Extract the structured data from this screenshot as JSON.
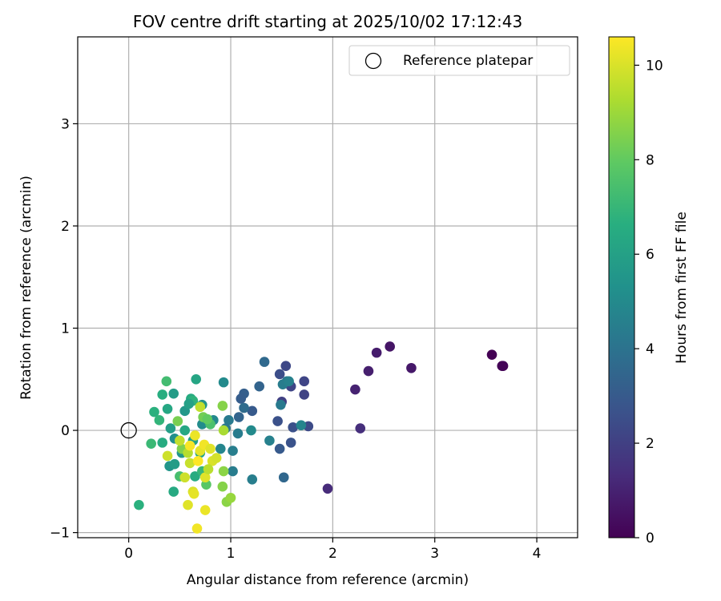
{
  "chart_data": {
    "type": "scatter",
    "title": "FOV centre drift starting at 2025/10/02 17:12:43",
    "xlabel": "Angular distance from reference (arcmin)",
    "ylabel": "Rotation from reference (arcmin)",
    "xlim": [
      -0.5,
      4.4
    ],
    "ylim": [
      -1.05,
      3.85
    ],
    "xticks": [
      0,
      1,
      2,
      3,
      4
    ],
    "yticks": [
      -1,
      0,
      1,
      2,
      3
    ],
    "grid": true,
    "legend": {
      "position": "top-right",
      "entries": [
        "Reference platepar"
      ]
    },
    "reference_point": {
      "x": 0,
      "y": 0
    },
    "colorbar": {
      "label": "Hours from first FF file",
      "min": 0,
      "max": 10.6,
      "ticks": [
        0,
        2,
        4,
        6,
        8,
        10
      ],
      "colormap": "viridis"
    },
    "points": [
      [
        3.56,
        0.74,
        0.0
      ],
      [
        3.66,
        0.63,
        0.05
      ],
      [
        3.67,
        0.63,
        0.1
      ],
      [
        2.56,
        0.82,
        0.6
      ],
      [
        2.43,
        0.76,
        0.8
      ],
      [
        2.35,
        0.58,
        0.9
      ],
      [
        2.22,
        0.4,
        1.0
      ],
      [
        2.77,
        0.61,
        0.7
      ],
      [
        2.27,
        0.02,
        1.4
      ],
      [
        1.95,
        -0.57,
        1.3
      ],
      [
        1.54,
        0.63,
        2.3
      ],
      [
        1.48,
        0.55,
        2.5
      ],
      [
        1.59,
        0.43,
        2.2
      ],
      [
        1.72,
        0.48,
        2.2
      ],
      [
        1.72,
        0.35,
        2.1
      ],
      [
        1.5,
        0.28,
        2.0
      ],
      [
        1.46,
        0.09,
        2.6
      ],
      [
        1.61,
        0.03,
        2.6
      ],
      [
        1.76,
        0.04,
        2.4
      ],
      [
        1.59,
        -0.12,
        2.7
      ],
      [
        1.48,
        -0.18,
        3.0
      ],
      [
        1.52,
        -0.46,
        3.5
      ],
      [
        1.33,
        0.67,
        3.6
      ],
      [
        1.28,
        0.43,
        3.4
      ],
      [
        1.13,
        0.36,
        3.2
      ],
      [
        1.1,
        0.31,
        3.1
      ],
      [
        1.21,
        0.19,
        3.0
      ],
      [
        1.08,
        0.13,
        3.4
      ],
      [
        1.13,
        0.22,
        3.7
      ],
      [
        1.55,
        0.48,
        4.1
      ],
      [
        1.51,
        0.45,
        4.4
      ],
      [
        1.57,
        0.48,
        4.6
      ],
      [
        1.49,
        0.25,
        4.3
      ],
      [
        1.69,
        0.05,
        4.8
      ],
      [
        1.38,
        -0.1,
        4.6
      ],
      [
        1.2,
        0.0,
        5.0
      ],
      [
        1.07,
        -0.03,
        4.4
      ],
      [
        1.02,
        -0.2,
        4.5
      ],
      [
        1.21,
        -0.48,
        4.5
      ],
      [
        1.02,
        -0.4,
        4.4
      ],
      [
        0.93,
        0.47,
        5.0
      ],
      [
        0.98,
        0.1,
        4.3
      ],
      [
        0.95,
        0.02,
        4.2
      ],
      [
        0.83,
        0.1,
        4.9
      ],
      [
        0.9,
        -0.18,
        4.8
      ],
      [
        0.72,
        0.06,
        5.1
      ],
      [
        0.72,
        0.25,
        5.5
      ],
      [
        0.55,
        0.19,
        5.6
      ],
      [
        0.66,
        0.5,
        6.2
      ],
      [
        0.61,
        0.31,
        6.5
      ],
      [
        0.63,
        0.29,
        6.8
      ],
      [
        0.59,
        0.26,
        6.0
      ],
      [
        0.44,
        0.36,
        5.8
      ],
      [
        0.38,
        0.21,
        6.3
      ],
      [
        0.37,
        0.48,
        7.3
      ],
      [
        0.33,
        0.35,
        6.6
      ],
      [
        0.25,
        0.18,
        6.7
      ],
      [
        0.3,
        0.1,
        6.9
      ],
      [
        0.41,
        0.02,
        5.9
      ],
      [
        0.45,
        -0.08,
        5.2
      ],
      [
        0.52,
        -0.22,
        5.5
      ],
      [
        0.4,
        -0.35,
        5.5
      ],
      [
        0.45,
        -0.33,
        5.8
      ],
      [
        0.65,
        -0.45,
        6.5
      ],
      [
        0.5,
        -0.45,
        7.4
      ],
      [
        0.44,
        -0.6,
        6.4
      ],
      [
        0.1,
        -0.73,
        6.7
      ],
      [
        0.22,
        -0.13,
        7.1
      ],
      [
        0.33,
        -0.12,
        6.5
      ],
      [
        0.55,
        0.0,
        6.3
      ],
      [
        0.63,
        -0.1,
        6.0
      ],
      [
        0.7,
        -0.22,
        6.2
      ],
      [
        0.72,
        -0.4,
        7.0
      ],
      [
        0.76,
        -0.53,
        7.8
      ],
      [
        0.8,
        0.06,
        7.5
      ],
      [
        0.73,
        0.13,
        8.3
      ],
      [
        0.77,
        0.11,
        8.0
      ],
      [
        0.52,
        -0.18,
        8.5
      ],
      [
        0.48,
        0.09,
        8.4
      ],
      [
        0.92,
        0.24,
        8.6
      ],
      [
        0.93,
        -0.4,
        8.7
      ],
      [
        0.92,
        -0.55,
        8.6
      ],
      [
        0.96,
        -0.7,
        8.7
      ],
      [
        1.0,
        -0.66,
        8.9
      ],
      [
        0.93,
        0.0,
        9.2
      ],
      [
        0.58,
        -0.22,
        9.4
      ],
      [
        0.5,
        -0.1,
        9.6
      ],
      [
        0.6,
        -0.32,
        9.7
      ],
      [
        0.55,
        -0.46,
        9.8
      ],
      [
        0.63,
        -0.6,
        10.0
      ],
      [
        0.58,
        -0.73,
        10.1
      ],
      [
        0.75,
        -0.78,
        10.3
      ],
      [
        0.67,
        -0.96,
        10.4
      ],
      [
        0.75,
        -0.46,
        10.1
      ],
      [
        0.82,
        -0.3,
        10.0
      ],
      [
        0.7,
        -0.2,
        10.2
      ],
      [
        0.65,
        -0.05,
        10.3
      ],
      [
        0.74,
        -0.14,
        10.4
      ],
      [
        0.86,
        -0.27,
        9.9
      ],
      [
        0.7,
        0.23,
        9.6
      ],
      [
        0.78,
        -0.38,
        9.5
      ],
      [
        0.6,
        -0.15,
        10.5
      ],
      [
        0.68,
        -0.3,
        10.6
      ],
      [
        0.8,
        -0.18,
        10.1
      ],
      [
        0.64,
        -0.62,
        10.2
      ],
      [
        0.38,
        -0.25,
        9.8
      ]
    ]
  }
}
